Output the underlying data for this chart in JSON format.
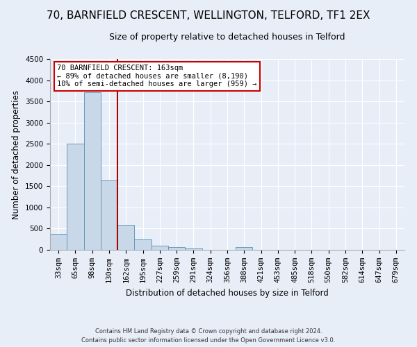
{
  "title": "70, BARNFIELD CRESCENT, WELLINGTON, TELFORD, TF1 2EX",
  "subtitle": "Size of property relative to detached houses in Telford",
  "xlabel": "Distribution of detached houses by size in Telford",
  "ylabel": "Number of detached properties",
  "categories": [
    "33sqm",
    "65sqm",
    "98sqm",
    "130sqm",
    "162sqm",
    "195sqm",
    "227sqm",
    "259sqm",
    "291sqm",
    "324sqm",
    "356sqm",
    "388sqm",
    "421sqm",
    "453sqm",
    "485sqm",
    "518sqm",
    "550sqm",
    "582sqm",
    "614sqm",
    "647sqm",
    "679sqm"
  ],
  "values": [
    380,
    2500,
    3720,
    1630,
    590,
    240,
    105,
    60,
    40,
    0,
    0,
    60,
    0,
    0,
    0,
    0,
    0,
    0,
    0,
    0,
    0
  ],
  "bar_color": "#c8d8e8",
  "bar_edge_color": "#6699bb",
  "annotation_text": "70 BARNFIELD CRESCENT: 163sqm\n← 89% of detached houses are smaller (8,190)\n10% of semi-detached houses are larger (959) →",
  "annotation_box_color": "#ffffff",
  "annotation_box_edge_color": "#cc0000",
  "vline_x_index": 4,
  "ylim": [
    0,
    4500
  ],
  "yticks": [
    0,
    500,
    1000,
    1500,
    2000,
    2500,
    3000,
    3500,
    4000,
    4500
  ],
  "background_color": "#e8eef8",
  "plot_bg_color": "#e8eef8",
  "footer_text": "Contains HM Land Registry data © Crown copyright and database right 2024.\nContains public sector information licensed under the Open Government Licence v3.0.",
  "title_fontsize": 11,
  "subtitle_fontsize": 9,
  "xlabel_fontsize": 8.5,
  "ylabel_fontsize": 8.5,
  "tick_fontsize": 7.5,
  "annotation_fontsize": 7.5,
  "footer_fontsize": 6
}
